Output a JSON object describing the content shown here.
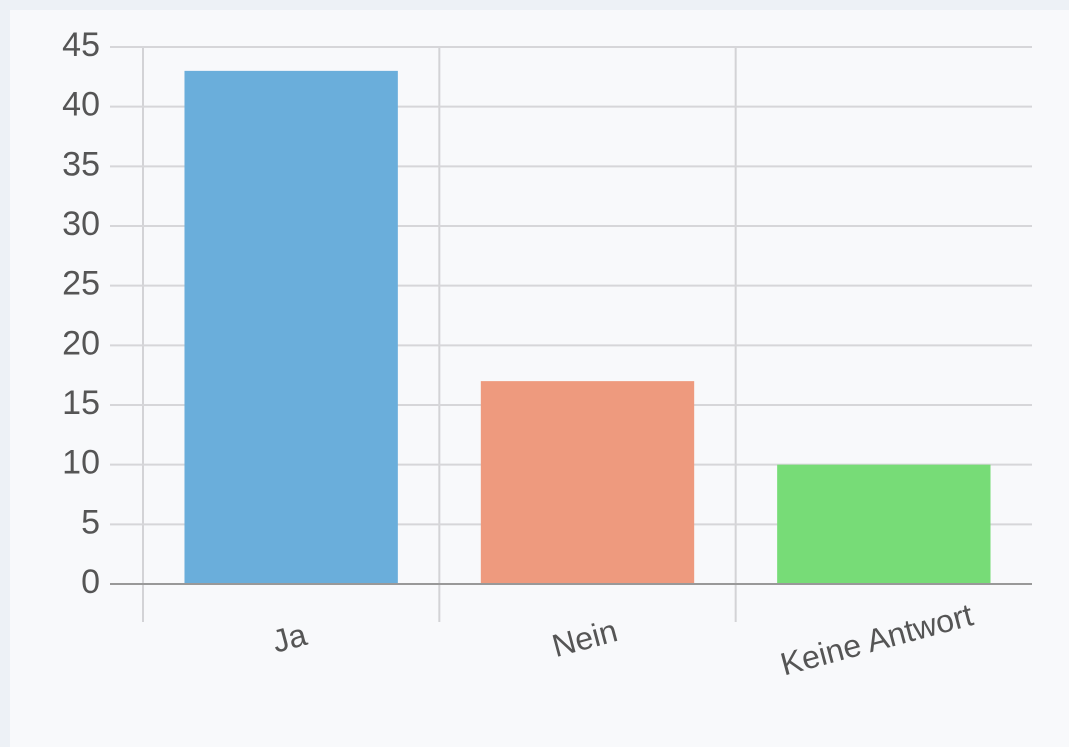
{
  "chart_data": {
    "type": "bar",
    "categories": [
      "Ja",
      "Nein",
      "Keine Antwort"
    ],
    "values": [
      43,
      17,
      10
    ],
    "colors": [
      "#6aaedb",
      "#ee9a7e",
      "#77dc77"
    ],
    "ylim": [
      0,
      45
    ],
    "yticks": [
      0,
      5,
      10,
      15,
      20,
      25,
      30,
      35,
      40,
      45
    ],
    "grid": true
  }
}
